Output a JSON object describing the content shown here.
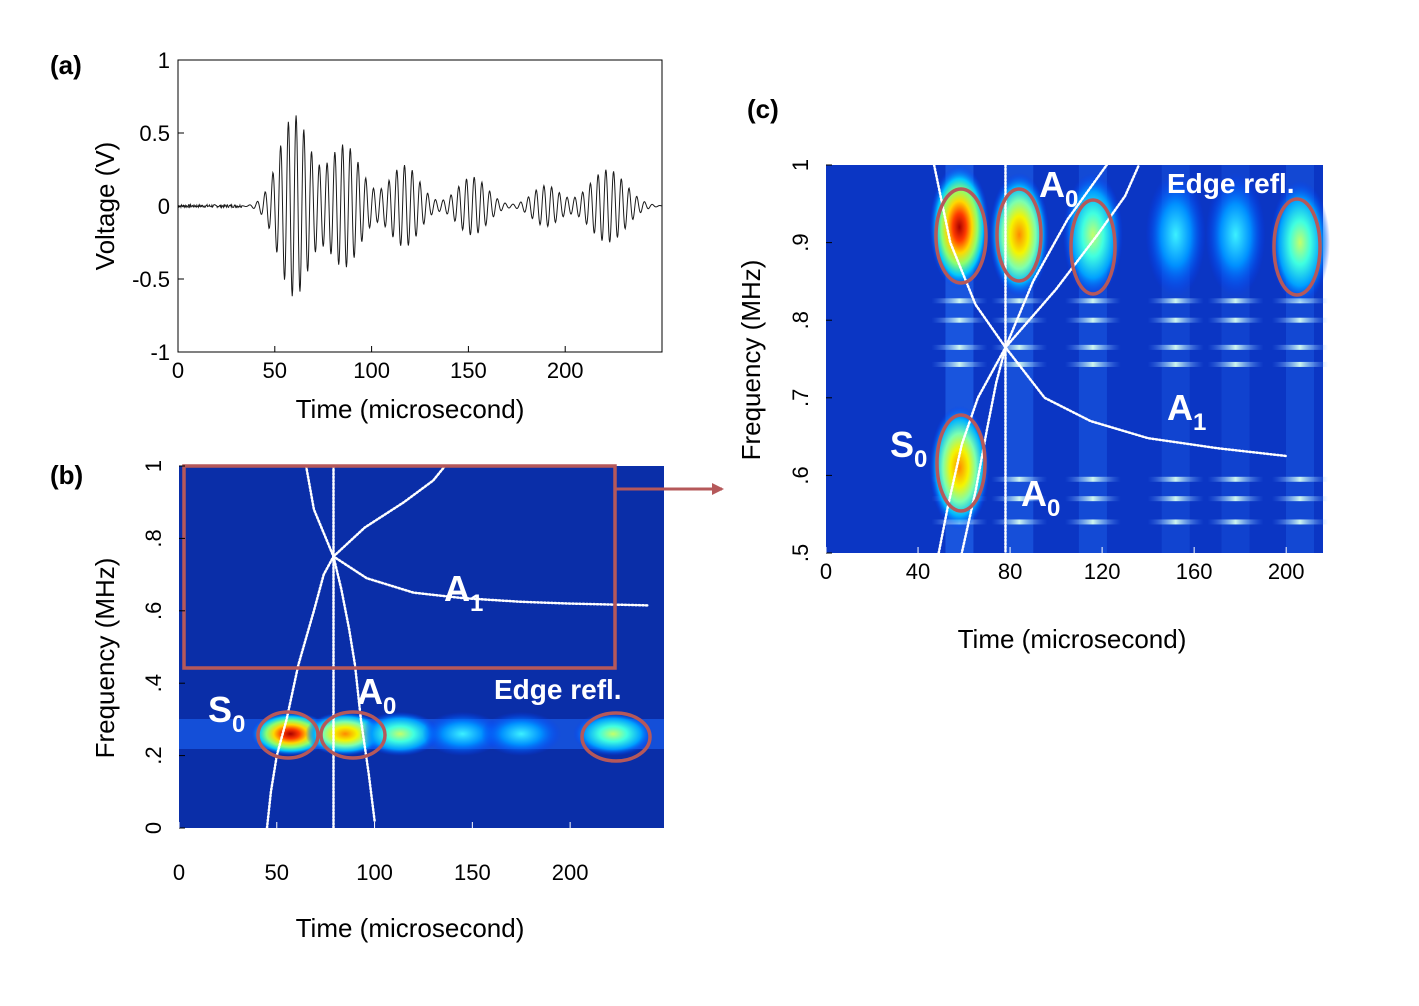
{
  "chart_data": [
    {
      "panel": "(a)",
      "type": "line",
      "xlabel": "Time (microsecond)",
      "ylabel": "Voltage (V)",
      "xlim": [
        0,
        250
      ],
      "ylim": [
        -1,
        1
      ],
      "xticks": [
        "0",
        "50",
        "100",
        "150",
        "200"
      ],
      "yticks": [
        "1",
        "0.5",
        "0",
        "-0.5",
        "-1"
      ],
      "xtick_values": [
        0,
        50,
        100,
        150,
        200
      ],
      "ytick_values": [
        1,
        0.5,
        0,
        -0.5,
        -1
      ],
      "signal_carrier_frequency_MHz": 0.25,
      "wave_packets": [
        {
          "center_us": 60,
          "width_us": 11,
          "amplitude_V": 0.62
        },
        {
          "center_us": 86,
          "width_us": 12,
          "amplitude_V": 0.42
        },
        {
          "center_us": 117,
          "width_us": 11,
          "amplitude_V": 0.28
        },
        {
          "center_us": 152,
          "width_us": 11,
          "amplitude_V": 0.2
        },
        {
          "center_us": 190,
          "width_us": 10,
          "amplitude_V": 0.14
        },
        {
          "center_us": 222,
          "width_us": 13,
          "amplitude_V": 0.25
        }
      ],
      "noise_until_us": 33
    },
    {
      "panel": "(b)",
      "type": "heatmap",
      "xlabel": "Time (microsecond)",
      "ylabel": "Frequency (MHz)",
      "xlim": [
        0,
        248
      ],
      "ylim": [
        0,
        1
      ],
      "xticks": [
        "0",
        "50",
        "100",
        "150",
        "200"
      ],
      "yticks": [
        "1",
        ".8",
        ".6",
        ".4",
        ".2",
        "0"
      ],
      "xtick_values": [
        0,
        50,
        100,
        150,
        200
      ],
      "ytick_values": [
        1,
        0.8,
        0.6,
        0.4,
        0.2,
        0
      ],
      "energy_blobs": [
        {
          "t_us": 57,
          "f_MHz": 0.26,
          "intensity": 1.0
        },
        {
          "t_us": 85,
          "f_MHz": 0.26,
          "intensity": 0.85
        },
        {
          "t_us": 113,
          "f_MHz": 0.26,
          "intensity": 0.45
        },
        {
          "t_us": 145,
          "f_MHz": 0.26,
          "intensity": 0.35
        },
        {
          "t_us": 175,
          "f_MHz": 0.26,
          "intensity": 0.3
        },
        {
          "t_us": 222,
          "f_MHz": 0.26,
          "intensity": 0.5
        }
      ],
      "dispersion_curves": {
        "S0": [
          [
            45,
            0
          ],
          [
            47,
            0.1
          ],
          [
            50,
            0.2
          ],
          [
            55,
            0.3
          ],
          [
            61,
            0.45
          ],
          [
            69,
            0.6
          ],
          [
            74,
            0.7
          ],
          [
            79,
            0.75
          ]
        ],
        "A0_branch": [
          [
            79,
            0.75
          ],
          [
            83,
            0.66
          ],
          [
            87,
            0.55
          ],
          [
            90,
            0.45
          ],
          [
            93,
            0.3
          ],
          [
            97,
            0.15
          ],
          [
            100,
            0.02
          ]
        ],
        "A0_upper": [
          [
            79,
            0.75
          ],
          [
            95,
            0.83
          ],
          [
            115,
            0.9
          ],
          [
            130,
            0.96
          ],
          [
            136,
            1.0
          ]
        ],
        "vertical_line_t_us": 79,
        "A1": [
          [
            65,
            1.0
          ],
          [
            69,
            0.88
          ],
          [
            79,
            0.75
          ],
          [
            96,
            0.69
          ],
          [
            120,
            0.65
          ],
          [
            145,
            0.635
          ],
          [
            175,
            0.625
          ],
          [
            200,
            0.62
          ],
          [
            240,
            0.615
          ]
        ]
      },
      "zoom_box": {
        "t_range_us": [
          0,
          223
        ],
        "f_range_MHz": [
          0.47,
          1.0
        ]
      },
      "annotations": [
        {
          "base": "S",
          "sub": "0"
        },
        {
          "base": "A",
          "sub": "0"
        },
        {
          "base": "A",
          "sub": "1"
        },
        {
          "text": "Edge refl."
        }
      ]
    },
    {
      "panel": "(c)",
      "type": "heatmap",
      "xlabel": "Time (microsecond)",
      "ylabel": "Frequency (MHz)",
      "xlim": [
        0,
        216
      ],
      "ylim": [
        0.5,
        1
      ],
      "xticks": [
        "0",
        "40",
        "80",
        "120",
        "160",
        "200"
      ],
      "yticks": [
        "1",
        ".9",
        ".8",
        ".7",
        ".6",
        ".5"
      ],
      "xtick_values": [
        0,
        40,
        80,
        120,
        160,
        200
      ],
      "ytick_values": [
        1,
        0.9,
        0.8,
        0.7,
        0.6,
        0.5
      ],
      "energy_blobs": [
        {
          "t_us": 58,
          "f_MHz": 0.92,
          "intensity": 1.0
        },
        {
          "t_us": 84,
          "f_MHz": 0.91,
          "intensity": 0.75
        },
        {
          "t_us": 116,
          "f_MHz": 0.91,
          "intensity": 0.55
        },
        {
          "t_us": 152,
          "f_MHz": 0.91,
          "intensity": 0.3
        },
        {
          "t_us": 178,
          "f_MHz": 0.91,
          "intensity": 0.25
        },
        {
          "t_us": 206,
          "f_MHz": 0.9,
          "intensity": 0.45
        },
        {
          "t_us": 58,
          "f_MHz": 0.61,
          "intensity": 0.7
        }
      ],
      "horizontal_bands_MHz": [
        0.825,
        0.8,
        0.765,
        0.743,
        0.595,
        0.57,
        0.54
      ],
      "dispersion_curves": {
        "S0": [
          [
            49,
            0.5
          ],
          [
            53,
            0.56
          ],
          [
            59,
            0.64
          ],
          [
            66,
            0.7
          ],
          [
            78,
            0.765
          ],
          [
            90,
            0.85
          ],
          [
            105,
            0.93
          ],
          [
            122,
            1.0
          ]
        ],
        "A0_lower": [
          [
            78,
            0.765
          ],
          [
            74,
            0.72
          ],
          [
            70,
            0.66
          ],
          [
            65,
            0.58
          ],
          [
            59,
            0.5
          ]
        ],
        "vertical_line_t_us": 78,
        "A1": [
          [
            47,
            1.0
          ],
          [
            54,
            0.9
          ],
          [
            65,
            0.82
          ],
          [
            78,
            0.765
          ],
          [
            95,
            0.7
          ],
          [
            115,
            0.67
          ],
          [
            140,
            0.648
          ],
          [
            170,
            0.635
          ],
          [
            200,
            0.625
          ]
        ],
        "A0_upper": [
          [
            78,
            0.765
          ],
          [
            100,
            0.84
          ],
          [
            118,
            0.91
          ],
          [
            130,
            0.96
          ],
          [
            136,
            1.0
          ]
        ]
      },
      "annotations": [
        {
          "base": "A",
          "sub": "0"
        },
        {
          "text": "Edge refl."
        },
        {
          "base": "A",
          "sub": "1"
        },
        {
          "base": "S",
          "sub": "0"
        },
        {
          "base": "A",
          "sub": "0"
        }
      ]
    }
  ]
}
